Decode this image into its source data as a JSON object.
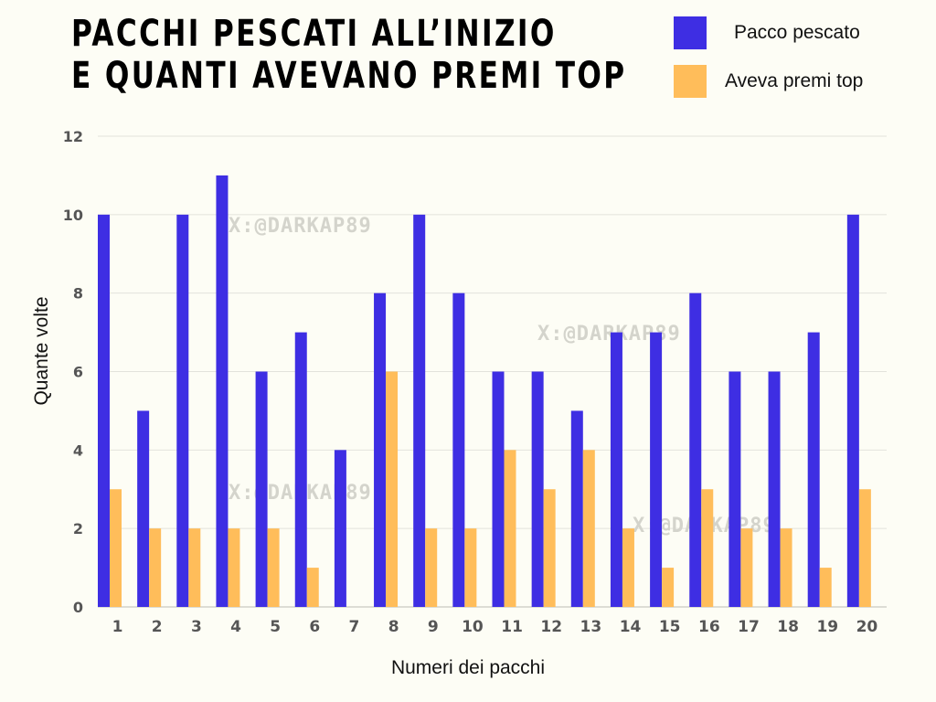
{
  "title_lines": [
    "PACCHI PESCATI ALL’INIZIO",
    "E QUANTI AVEVANO PREMI TOP"
  ],
  "legend": [
    {
      "label": "Pacco pescato",
      "color": "#3e2ee3"
    },
    {
      "label": "Aveva premi top",
      "color": "#ffbd5a"
    }
  ],
  "watermark": "X:@DARKAP89",
  "chart_data": {
    "type": "bar",
    "title": "PACCHI PESCATI ALL’INIZIO E QUANTI AVEVANO PREMI TOP",
    "xlabel": "Numeri dei pacchi",
    "ylabel": "Quante volte",
    "ylim": [
      0,
      12
    ],
    "yticks": [
      0,
      2,
      4,
      6,
      8,
      10,
      12
    ],
    "grid": true,
    "legend_position": "top-right",
    "categories": [
      "1",
      "2",
      "3",
      "4",
      "5",
      "6",
      "7",
      "8",
      "9",
      "10",
      "11",
      "12",
      "13",
      "14",
      "15",
      "16",
      "17",
      "18",
      "19",
      "20"
    ],
    "series": [
      {
        "name": "Pacco pescato",
        "color": "#3e2ee3",
        "values": [
          10,
          5,
          10,
          11,
          6,
          7,
          4,
          8,
          10,
          8,
          6,
          6,
          5,
          7,
          7,
          8,
          6,
          6,
          7,
          10
        ]
      },
      {
        "name": "Aveva premi top",
        "color": "#ffbd5a",
        "values": [
          3,
          2,
          2,
          2,
          2,
          1,
          0,
          6,
          2,
          2,
          4,
          3,
          4,
          2,
          1,
          3,
          2,
          2,
          1,
          3
        ]
      }
    ]
  }
}
